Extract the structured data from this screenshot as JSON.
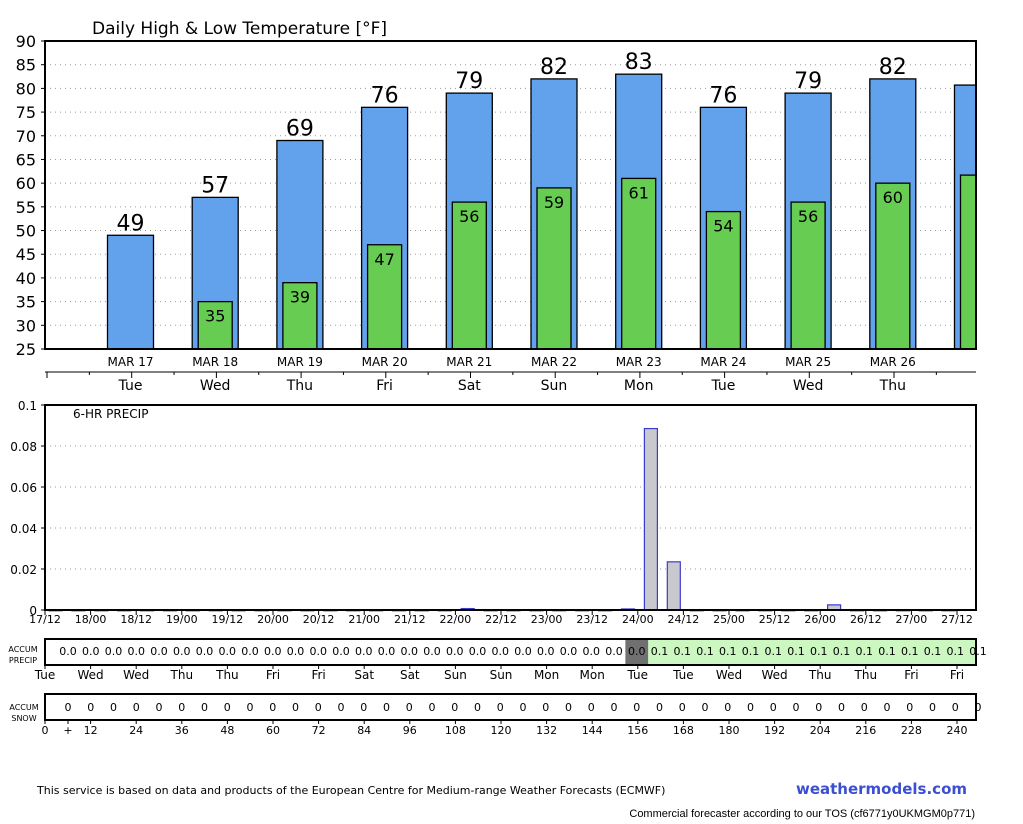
{
  "chart_data": [
    {
      "type": "bar",
      "title": "Daily High & Low Temperature [°F]",
      "ylim": [
        25,
        90
      ],
      "yticks": [
        25,
        30,
        35,
        40,
        45,
        50,
        55,
        60,
        65,
        70,
        75,
        80,
        85,
        90
      ],
      "categories": [
        "MAR 17",
        "MAR 18",
        "MAR 19",
        "MAR 20",
        "MAR 21",
        "MAR 22",
        "MAR 23",
        "MAR 24",
        "MAR 25",
        "MAR 26",
        ""
      ],
      "weekdays": [
        "Tue",
        "Wed",
        "Thu",
        "Fri",
        "Sat",
        "Sun",
        "Mon",
        "Tue",
        "Wed",
        "Thu",
        ""
      ],
      "series": [
        {
          "name": "High",
          "color": "#62a2ec",
          "values": [
            49,
            57,
            69,
            76,
            79,
            82,
            83,
            76,
            79,
            82,
            80.7
          ],
          "labels": [
            "49",
            "57",
            "69",
            "76",
            "79",
            "82",
            "83",
            "76",
            "79",
            "82",
            ""
          ]
        },
        {
          "name": "Low",
          "color": "#66cc52",
          "values": [
            null,
            35,
            39,
            47,
            56,
            59,
            61,
            54,
            56,
            60,
            61.7
          ],
          "labels": [
            "",
            "35",
            "39",
            "47",
            "56",
            "59",
            "61",
            "54",
            "56",
            "60",
            ""
          ]
        }
      ]
    },
    {
      "type": "bar",
      "title": "6-HR PRECIP",
      "ylim": [
        0,
        0.1
      ],
      "yticks": [
        "0",
        "0.02",
        "0.04",
        "0.06",
        "0.08",
        "0.1"
      ],
      "x_labels": [
        "17/12",
        "18/00",
        "18/12",
        "19/00",
        "19/12",
        "20/00",
        "20/12",
        "21/00",
        "21/12",
        "22/00",
        "22/12",
        "23/00",
        "23/12",
        "24/00",
        "24/12",
        "25/00",
        "25/12",
        "26/00",
        "26/12",
        "27/00",
        "27/12"
      ],
      "values": [
        0,
        0,
        0,
        0,
        0,
        0,
        0,
        0,
        0,
        0,
        0,
        0,
        0,
        0,
        0,
        0,
        0,
        0,
        0.0007,
        0,
        0,
        0,
        0,
        0,
        0,
        0.0005,
        0.0885,
        0.0235,
        0,
        0,
        0,
        0,
        0,
        0,
        0.0025,
        0,
        0,
        0,
        0,
        0
      ],
      "bar_color": "#c8c8cf",
      "bar_outline": "#3b3bcc"
    },
    {
      "type": "table",
      "title": "ACCUM PRECIP",
      "values": [
        "0.0",
        "0.0",
        "0.0",
        "0.0",
        "0.0",
        "0.0",
        "0.0",
        "0.0",
        "0.0",
        "0.0",
        "0.0",
        "0.0",
        "0.0",
        "0.0",
        "0.0",
        "0.0",
        "0.0",
        "0.0",
        "0.0",
        "0.0",
        "0.0",
        "0.0",
        "0.0",
        "0.0",
        "0.0",
        "0.0",
        "0.1",
        "0.1",
        "0.1",
        "0.1",
        "0.1",
        "0.1",
        "0.1",
        "0.1",
        "0.1",
        "0.1",
        "0.1",
        "0.1",
        "0.1",
        "0.1",
        "0.1"
      ],
      "highlight_index": 25,
      "highlight_color": "#707070",
      "after_color": "#ccf7c1",
      "day_labels": [
        "Tue",
        "Wed",
        "Wed",
        "Thu",
        "Thu",
        "Fri",
        "Fri",
        "Sat",
        "Sat",
        "Sun",
        "Sun",
        "Mon",
        "Mon",
        "Tue",
        "Tue",
        "Wed",
        "Wed",
        "Thu",
        "Thu",
        "Fri",
        "Fri"
      ]
    },
    {
      "type": "table",
      "title": "ACCUM SNOW",
      "values": [
        "0",
        "0",
        "0",
        "0",
        "0",
        "0",
        "0",
        "0",
        "0",
        "0",
        "0",
        "0",
        "0",
        "0",
        "0",
        "0",
        "0",
        "0",
        "0",
        "0",
        "0",
        "0",
        "0",
        "0",
        "0",
        "0",
        "0",
        "0",
        "0",
        "0",
        "0",
        "0",
        "0",
        "0",
        "0",
        "0",
        "0",
        "0",
        "0",
        "0",
        "0"
      ],
      "hour_labels": [
        "0",
        "+",
        "12",
        "24",
        "36",
        "48",
        "60",
        "72",
        "84",
        "96",
        "108",
        "120",
        "132",
        "144",
        "156",
        "168",
        "180",
        "192",
        "204",
        "216",
        "228",
        "240"
      ]
    }
  ],
  "footer": {
    "attribution": "This service is based on data and products of the European Centre for Medium-range Weather Forecasts (ECMWF)",
    "brand": "weathermodels.com",
    "tos": "Commercial forecaster according to our TOS (cf6771y0UKMGM0p771)"
  }
}
